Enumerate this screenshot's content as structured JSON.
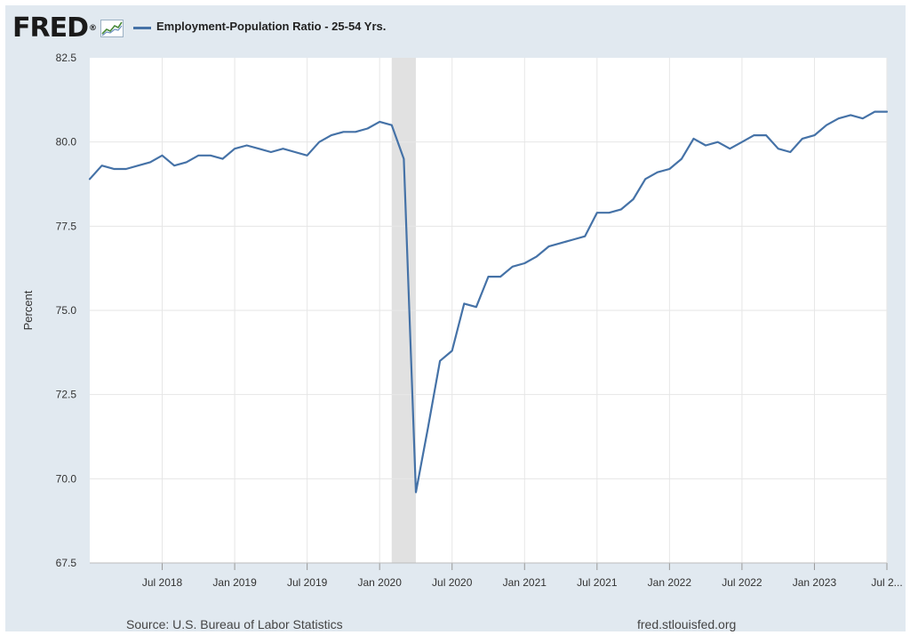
{
  "brand": {
    "logo_text": "FRED",
    "registered_mark": "®"
  },
  "legend": {
    "label": "Employment-Population Ratio - 25-54 Yrs.",
    "color": "#4572a7"
  },
  "footer": {
    "source": "Source: U.S. Bureau of Labor Statistics",
    "site": "fred.stlouisfed.org"
  },
  "chart_data": {
    "type": "line",
    "title": "",
    "xlabel": "",
    "ylabel": "Percent",
    "ylim": [
      67.5,
      82.5
    ],
    "yticks": [
      67.5,
      70.0,
      72.5,
      75.0,
      77.5,
      80.0,
      82.5
    ],
    "ytick_labels": [
      "67.5",
      "70.0",
      "72.5",
      "75.0",
      "77.5",
      "80.0",
      "82.5"
    ],
    "x_range": [
      "2018-01",
      "2023-07"
    ],
    "xticks": [
      "2018-07",
      "2019-01",
      "2019-07",
      "2020-01",
      "2020-07",
      "2021-01",
      "2021-07",
      "2022-01",
      "2022-07",
      "2023-01",
      "2023-07"
    ],
    "xtick_labels": [
      "Jul 2018",
      "Jan 2019",
      "Jul 2019",
      "Jan 2020",
      "Jul 2020",
      "Jan 2021",
      "Jul 2021",
      "Jan 2022",
      "Jul 2022",
      "Jan 2023",
      "Jul 2..."
    ],
    "recession_shading": [
      {
        "start": "2020-02",
        "end": "2020-04"
      }
    ],
    "grid": true,
    "series": [
      {
        "name": "Employment-Population Ratio - 25-54 Yrs.",
        "color": "#4572a7",
        "x": [
          "2018-01",
          "2018-02",
          "2018-03",
          "2018-04",
          "2018-05",
          "2018-06",
          "2018-07",
          "2018-08",
          "2018-09",
          "2018-10",
          "2018-11",
          "2018-12",
          "2019-01",
          "2019-02",
          "2019-03",
          "2019-04",
          "2019-05",
          "2019-06",
          "2019-07",
          "2019-08",
          "2019-09",
          "2019-10",
          "2019-11",
          "2019-12",
          "2020-01",
          "2020-02",
          "2020-03",
          "2020-04",
          "2020-05",
          "2020-06",
          "2020-07",
          "2020-08",
          "2020-09",
          "2020-10",
          "2020-11",
          "2020-12",
          "2021-01",
          "2021-02",
          "2021-03",
          "2021-04",
          "2021-05",
          "2021-06",
          "2021-07",
          "2021-08",
          "2021-09",
          "2021-10",
          "2021-11",
          "2021-12",
          "2022-01",
          "2022-02",
          "2022-03",
          "2022-04",
          "2022-05",
          "2022-06",
          "2022-07",
          "2022-08",
          "2022-09",
          "2022-10",
          "2022-11",
          "2022-12",
          "2023-01",
          "2023-02",
          "2023-03",
          "2023-04",
          "2023-05",
          "2023-06",
          "2023-07"
        ],
        "values": [
          78.9,
          79.3,
          79.2,
          79.2,
          79.3,
          79.4,
          79.6,
          79.3,
          79.4,
          79.6,
          79.6,
          79.5,
          79.8,
          79.9,
          79.8,
          79.7,
          79.8,
          79.7,
          79.6,
          80.0,
          80.2,
          80.3,
          80.3,
          80.4,
          80.6,
          80.5,
          79.5,
          69.6,
          71.5,
          73.5,
          73.8,
          75.2,
          75.1,
          76.0,
          76.0,
          76.3,
          76.4,
          76.6,
          76.9,
          77.0,
          77.1,
          77.2,
          77.9,
          77.9,
          78.0,
          78.3,
          78.9,
          79.1,
          79.2,
          79.5,
          80.1,
          79.9,
          80.0,
          79.8,
          80.0,
          80.2,
          80.2,
          79.8,
          79.7,
          80.1,
          80.2,
          80.5,
          80.7,
          80.8,
          80.7,
          80.9,
          80.9
        ]
      }
    ]
  }
}
